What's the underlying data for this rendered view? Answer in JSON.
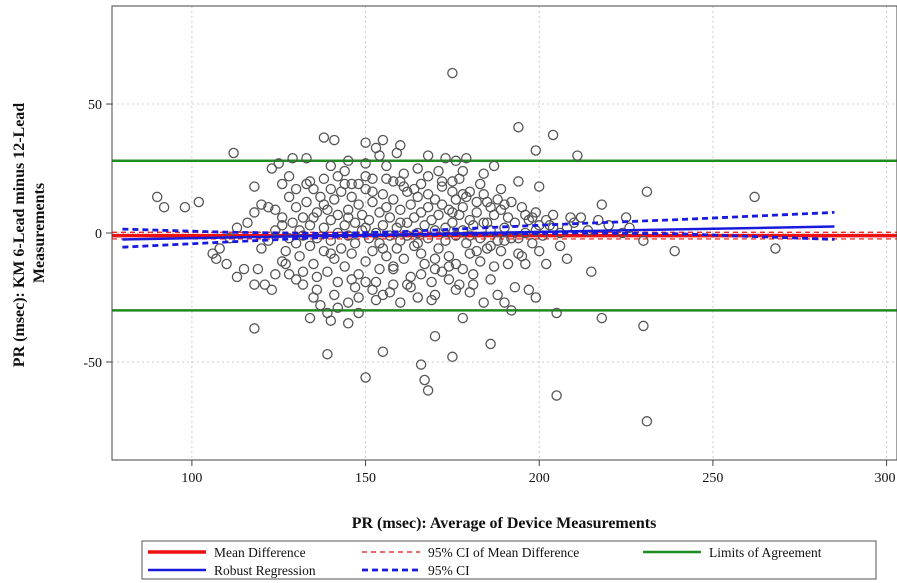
{
  "chart_data": {
    "type": "scatter",
    "xlabel": "PR (msec): Average of Device Measurements",
    "ylabel_lines": [
      "PR (msec): KM 6-Lead minus 12-Lead",
      "Measurements"
    ],
    "xlim": [
      77,
      303
    ],
    "ylim": [
      -88,
      88
    ],
    "x_ticks": [
      100,
      150,
      200,
      250,
      300
    ],
    "x_tick_labels": [
      "100",
      "150",
      "200",
      "250",
      "300"
    ],
    "y_ticks": [
      -50,
      0,
      50
    ],
    "y_tick_labels": [
      "-50",
      "0",
      "50"
    ],
    "grid": true,
    "legend_position": "bottom",
    "series": [
      {
        "name": "Mean Difference",
        "kind": "hline",
        "y": -1,
        "color": "#ee1111",
        "dash": "solid",
        "width": 3.5,
        "x_range": [
          77,
          303
        ]
      },
      {
        "name": "95% CI of Mean Difference",
        "kind": "hlines",
        "y": [
          0.3,
          -2.3
        ],
        "color": "#ee1111",
        "dash": "dashed",
        "width": 1.2,
        "x_range": [
          77,
          303
        ]
      },
      {
        "name": "Limits of Agreement",
        "kind": "hlines",
        "y": [
          28,
          -30
        ],
        "color": "#1e8c1e",
        "dash": "solid",
        "width": 2.5,
        "x_range": [
          77,
          303
        ]
      },
      {
        "name": "Robust Regression",
        "kind": "line",
        "x": [
          80,
          285
        ],
        "y": [
          -2.5,
          2.5
        ],
        "color": "#1a1add",
        "dash": "solid",
        "width": 2.5
      },
      {
        "name": "95% CI",
        "kind": "curves",
        "x": [
          80,
          110,
          140,
          160,
          180,
          210,
          240,
          285
        ],
        "upper": [
          1.5,
          0.3,
          -0.2,
          0.5,
          1.8,
          3.6,
          5.2,
          8.0
        ],
        "lower": [
          -5.5,
          -3.5,
          -1.6,
          -0.8,
          -0.6,
          0.0,
          -0.3,
          -2.5
        ],
        "color": "#1a1add",
        "dash": "dashed",
        "width": 2.8
      }
    ],
    "points": [
      [
        175,
        62
      ],
      [
        194,
        41
      ],
      [
        204,
        38
      ],
      [
        138,
        37
      ],
      [
        141,
        36
      ],
      [
        155,
        36
      ],
      [
        160,
        34
      ],
      [
        153,
        33
      ],
      [
        159,
        31
      ],
      [
        154,
        30
      ],
      [
        150,
        35
      ],
      [
        168,
        30
      ],
      [
        173,
        29
      ],
      [
        176,
        28
      ],
      [
        179,
        29
      ],
      [
        199,
        32
      ],
      [
        211,
        30
      ],
      [
        112,
        31
      ],
      [
        123,
        25
      ],
      [
        125,
        27
      ],
      [
        129,
        29
      ],
      [
        133,
        29
      ],
      [
        140,
        26
      ],
      [
        145,
        28
      ],
      [
        150,
        27
      ],
      [
        165,
        25
      ],
      [
        178,
        24
      ],
      [
        184,
        23
      ],
      [
        187,
        26
      ],
      [
        194,
        20
      ],
      [
        200,
        18
      ],
      [
        218,
        11
      ],
      [
        231,
        16
      ],
      [
        262,
        14
      ],
      [
        90,
        14
      ],
      [
        92,
        10
      ],
      [
        98,
        10
      ],
      [
        102,
        12
      ],
      [
        120,
        11
      ],
      [
        122,
        10
      ],
      [
        126,
        19
      ],
      [
        128,
        22
      ],
      [
        135,
        17
      ],
      [
        142,
        22
      ],
      [
        146,
        19
      ],
      [
        152,
        21
      ],
      [
        158,
        20
      ],
      [
        162,
        16
      ],
      [
        168,
        22
      ],
      [
        172,
        18
      ],
      [
        175,
        20
      ],
      [
        178,
        15
      ],
      [
        182,
        12
      ],
      [
        186,
        10
      ],
      [
        190,
        11
      ],
      [
        195,
        10
      ],
      [
        199,
        8
      ],
      [
        204,
        7
      ],
      [
        209,
        6
      ],
      [
        212,
        6
      ],
      [
        217,
        5
      ],
      [
        225,
        6
      ],
      [
        118,
        18
      ],
      [
        118,
        8
      ],
      [
        116,
        4
      ],
      [
        113,
        2
      ],
      [
        111,
        -2
      ],
      [
        108,
        -6
      ],
      [
        106,
        -8
      ],
      [
        107,
        -10
      ],
      [
        110,
        -12
      ],
      [
        113,
        -17
      ],
      [
        115,
        -14
      ],
      [
        118,
        -20
      ],
      [
        119,
        -14
      ],
      [
        121,
        -20
      ],
      [
        123,
        -22
      ],
      [
        124,
        -16
      ],
      [
        127,
        -12
      ],
      [
        130,
        -18
      ],
      [
        132,
        -15
      ],
      [
        135,
        -25
      ],
      [
        137,
        -28
      ],
      [
        139,
        -31
      ],
      [
        142,
        -29
      ],
      [
        145,
        -27
      ],
      [
        148,
        -25
      ],
      [
        152,
        -22
      ],
      [
        155,
        -24
      ],
      [
        158,
        -20
      ],
      [
        160,
        -27
      ],
      [
        165,
        -25
      ],
      [
        170,
        -24
      ],
      [
        176,
        -22
      ],
      [
        181,
        -20
      ],
      [
        186,
        -18
      ],
      [
        190,
        -27
      ],
      [
        193,
        -21
      ],
      [
        197,
        -22
      ],
      [
        199,
        -25
      ],
      [
        195,
        -9
      ],
      [
        202,
        -12
      ],
      [
        208,
        -10
      ],
      [
        215,
        -15
      ],
      [
        218,
        -33
      ],
      [
        230,
        -36
      ],
      [
        231,
        -73
      ],
      [
        205,
        -63
      ],
      [
        192,
        -30
      ],
      [
        186,
        -43
      ],
      [
        178,
        -33
      ],
      [
        175,
        -48
      ],
      [
        170,
        -40
      ],
      [
        166,
        -51
      ],
      [
        167,
        -57
      ],
      [
        168,
        -61
      ],
      [
        155,
        -46
      ],
      [
        150,
        -56
      ],
      [
        139,
        -47
      ],
      [
        118,
        -37
      ],
      [
        134,
        -33
      ],
      [
        140,
        -34
      ],
      [
        145,
        -35
      ],
      [
        148,
        -31
      ],
      [
        239,
        -7
      ],
      [
        268,
        -6
      ],
      [
        226,
        2
      ],
      [
        230,
        -3
      ],
      [
        205,
        -31
      ],
      [
        120,
        -6
      ],
      [
        122,
        -3
      ],
      [
        124,
        1
      ],
      [
        126,
        3
      ],
      [
        126,
        6
      ],
      [
        127,
        -7
      ],
      [
        128,
        -2
      ],
      [
        129,
        4
      ],
      [
        130,
        10
      ],
      [
        131,
        -9
      ],
      [
        131,
        1
      ],
      [
        132,
        6
      ],
      [
        133,
        12
      ],
      [
        134,
        -5
      ],
      [
        134,
        3
      ],
      [
        135,
        -12
      ],
      [
        136,
        8
      ],
      [
        136,
        -2
      ],
      [
        137,
        14
      ],
      [
        138,
        -7
      ],
      [
        138,
        2
      ],
      [
        139,
        -15
      ],
      [
        139,
        9
      ],
      [
        140,
        -3
      ],
      [
        140,
        5
      ],
      [
        141,
        13
      ],
      [
        141,
        -10
      ],
      [
        142,
        0
      ],
      [
        142,
        7
      ],
      [
        143,
        -6
      ],
      [
        143,
        16
      ],
      [
        144,
        3
      ],
      [
        144,
        -13
      ],
      [
        145,
        9
      ],
      [
        145,
        -1
      ],
      [
        146,
        -8
      ],
      [
        146,
        14
      ],
      [
        147,
        4
      ],
      [
        147,
        -4
      ],
      [
        148,
        11
      ],
      [
        148,
        -16
      ],
      [
        149,
        1
      ],
      [
        149,
        7
      ],
      [
        150,
        -11
      ],
      [
        150,
        17
      ],
      [
        151,
        -2
      ],
      [
        151,
        5
      ],
      [
        152,
        12
      ],
      [
        152,
        -7
      ],
      [
        153,
        0
      ],
      [
        153,
        -19
      ],
      [
        154,
        8
      ],
      [
        154,
        -4
      ],
      [
        155,
        15
      ],
      [
        155,
        3
      ],
      [
        156,
        -9
      ],
      [
        156,
        10
      ],
      [
        157,
        -1
      ],
      [
        157,
        6
      ],
      [
        158,
        -14
      ],
      [
        158,
        13
      ],
      [
        159,
        2
      ],
      [
        159,
        -6
      ],
      [
        160,
        9
      ],
      [
        160,
        -3
      ],
      [
        161,
        18
      ],
      [
        161,
        -10
      ],
      [
        162,
        4
      ],
      [
        162,
        -1
      ],
      [
        163,
        11
      ],
      [
        163,
        -17
      ],
      [
        164,
        6
      ],
      [
        164,
        -5
      ],
      [
        165,
        0
      ],
      [
        165,
        14
      ],
      [
        166,
        -8
      ],
      [
        166,
        8
      ],
      [
        167,
        3
      ],
      [
        167,
        -12
      ],
      [
        168,
        10
      ],
      [
        168,
        -2
      ],
      [
        169,
        5
      ],
      [
        169,
        -19
      ],
      [
        170,
        13
      ],
      [
        170,
        1
      ],
      [
        171,
        -6
      ],
      [
        171,
        7
      ],
      [
        172,
        -15
      ],
      [
        172,
        11
      ],
      [
        173,
        2
      ],
      [
        173,
        -3
      ],
      [
        174,
        9
      ],
      [
        174,
        -9
      ],
      [
        175,
        4
      ],
      [
        175,
        16
      ],
      [
        176,
        -1
      ],
      [
        176,
        -12
      ],
      [
        177,
        7
      ],
      [
        177,
        -20
      ],
      [
        178,
        1
      ],
      [
        178,
        10
      ],
      [
        179,
        -4
      ],
      [
        179,
        14
      ],
      [
        180,
        -8
      ],
      [
        180,
        5
      ],
      [
        181,
        3
      ],
      [
        181,
        -16
      ],
      [
        182,
        8
      ],
      [
        183,
        -2
      ],
      [
        183,
        -11
      ],
      [
        184,
        4
      ],
      [
        185,
        -6
      ],
      [
        185,
        12
      ],
      [
        186,
        1
      ],
      [
        187,
        -13
      ],
      [
        187,
        7
      ],
      [
        188,
        -3
      ],
      [
        189,
        9
      ],
      [
        189,
        -7
      ],
      [
        190,
        2
      ],
      [
        191,
        -12
      ],
      [
        191,
        6
      ],
      [
        192,
        -2
      ],
      [
        193,
        4
      ],
      [
        194,
        -8
      ],
      [
        196,
        0
      ],
      [
        197,
        5
      ],
      [
        198,
        -4
      ],
      [
        199,
        1
      ],
      [
        201,
        -1
      ],
      [
        203,
        3
      ],
      [
        206,
        -5
      ],
      [
        208,
        2
      ],
      [
        210,
        4
      ],
      [
        214,
        1
      ],
      [
        220,
        3
      ],
      [
        224,
        0
      ],
      [
        132,
        -20
      ],
      [
        136,
        -22
      ],
      [
        141,
        -24
      ],
      [
        147,
        -21
      ],
      [
        153,
        -26
      ],
      [
        157,
        -23
      ],
      [
        163,
        -21
      ],
      [
        169,
        -26
      ],
      [
        174,
        -18
      ],
      [
        180,
        -23
      ],
      [
        184,
        -27
      ],
      [
        188,
        -24
      ],
      [
        128,
        14
      ],
      [
        133,
        19
      ],
      [
        138,
        21
      ],
      [
        144,
        24
      ],
      [
        150,
        22
      ],
      [
        156,
        26
      ],
      [
        161,
        23
      ],
      [
        166,
        19
      ],
      [
        171,
        24
      ],
      [
        177,
        21
      ],
      [
        183,
        19
      ],
      [
        189,
        17
      ],
      [
        130,
        -4
      ],
      [
        135,
        6
      ],
      [
        140,
        -8
      ],
      [
        145,
        6
      ],
      [
        150,
        2
      ],
      [
        155,
        -6
      ],
      [
        160,
        4
      ],
      [
        165,
        -4
      ],
      [
        170,
        -10
      ],
      [
        175,
        8
      ],
      [
        180,
        -1
      ],
      [
        185,
        4
      ],
      [
        124,
        9
      ],
      [
        126,
        -11
      ],
      [
        128,
        -16
      ],
      [
        130,
        17
      ],
      [
        132,
        -1
      ],
      [
        134,
        20
      ],
      [
        136,
        -17
      ],
      [
        138,
        11
      ],
      [
        140,
        17
      ],
      [
        142,
        -19
      ],
      [
        144,
        19
      ],
      [
        146,
        -18
      ],
      [
        148,
        19
      ],
      [
        150,
        -19
      ],
      [
        152,
        16
      ],
      [
        154,
        -14
      ],
      [
        156,
        21
      ],
      [
        158,
        -13
      ],
      [
        160,
        20
      ],
      [
        162,
        -20
      ],
      [
        164,
        17
      ],
      [
        166,
        -16
      ],
      [
        168,
        15
      ],
      [
        170,
        -14
      ],
      [
        172,
        20
      ],
      [
        174,
        -13
      ],
      [
        176,
        13
      ],
      [
        178,
        -14
      ],
      [
        180,
        16
      ],
      [
        182,
        -7
      ],
      [
        184,
        15
      ],
      [
        186,
        -5
      ],
      [
        188,
        13
      ],
      [
        190,
        -3
      ],
      [
        192,
        12
      ],
      [
        194,
        -2
      ],
      [
        196,
        7
      ],
      [
        198,
        6
      ],
      [
        200,
        3
      ],
      [
        202,
        5
      ],
      [
        204,
        2
      ],
      [
        206,
        0
      ],
      [
        196,
        -12
      ],
      [
        200,
        -7
      ]
    ]
  },
  "legend": {
    "items": [
      {
        "label": "Mean Difference",
        "color": "#ee1111",
        "dash": "solid",
        "width": 3.5
      },
      {
        "label": "95% CI of Mean Difference",
        "color": "#ee1111",
        "dash": "dashed",
        "width": 1.3
      },
      {
        "label": "Limits of Agreement",
        "color": "#1e8c1e",
        "dash": "solid",
        "width": 2.5
      },
      {
        "label": "Robust Regression",
        "color": "#1a1add",
        "dash": "solid",
        "width": 2.5
      },
      {
        "label": "95% CI",
        "color": "#1a1add",
        "dash": "dashed",
        "width": 2.8
      }
    ]
  }
}
